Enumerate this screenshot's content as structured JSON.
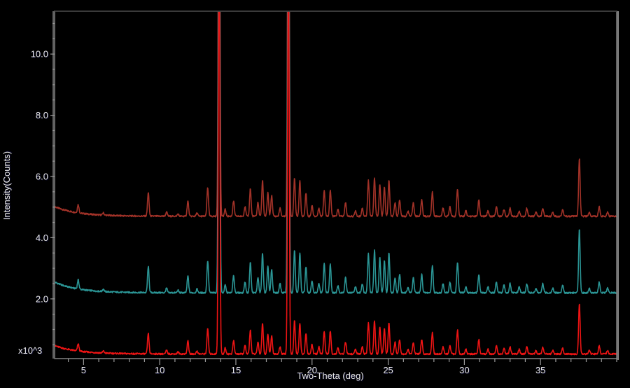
{
  "window": {
    "background_color": "#000000",
    "frame_color": "#8c8c8c",
    "frame_highlight_color": "#d9d9d9",
    "frame_shadow_color": "#3a3a3a",
    "tick_color": "#9a9a9a",
    "label_color": "#e9e9e9"
  },
  "chart_data": {
    "type": "line",
    "title": "",
    "xlabel": "Two-Theta (deg)",
    "ylabel": "Intensity(Counts)",
    "y_unit_multiplier": "x10^3",
    "xlim": [
      3.1,
      40.0
    ],
    "ylim": [
      0.05,
      11.4
    ],
    "x_major_ticks": [
      5,
      10,
      15,
      20,
      25,
      30,
      35
    ],
    "x_tick_labels": [
      "5",
      "10",
      "15",
      "20",
      "25",
      "30",
      "35"
    ],
    "x_minor_step": 1,
    "y_major_ticks": [
      2,
      4,
      6,
      8,
      10
    ],
    "y_tick_labels": [
      "2.0",
      "4.0",
      "6.0",
      "8.0",
      "10.0"
    ],
    "y_minor_step": 0.5,
    "grid": false,
    "legend": null,
    "description": "Three stacked powder X-ray diffraction patterns of the same phase, vertically offset; intensities in 10^3 counts; strongest reflections at 13.9 and 18.45 degrees are clipped at the top of the plot.",
    "peaks": [
      [
        4.65,
        0.3
      ],
      [
        6.3,
        0.08
      ],
      [
        9.25,
        0.85
      ],
      [
        10.45,
        0.15
      ],
      [
        11.2,
        0.08
      ],
      [
        11.85,
        0.55
      ],
      [
        12.45,
        0.12
      ],
      [
        13.15,
        1.05
      ],
      [
        13.9,
        18.0
      ],
      [
        14.3,
        0.25
      ],
      [
        14.85,
        0.55
      ],
      [
        15.6,
        0.35
      ],
      [
        15.95,
        1.0
      ],
      [
        16.45,
        0.5
      ],
      [
        16.75,
        1.3
      ],
      [
        17.1,
        0.85
      ],
      [
        17.35,
        0.75
      ],
      [
        17.9,
        0.3
      ],
      [
        18.45,
        18.5
      ],
      [
        18.85,
        1.4
      ],
      [
        19.2,
        1.3
      ],
      [
        19.6,
        0.85
      ],
      [
        20.0,
        0.4
      ],
      [
        20.45,
        0.3
      ],
      [
        20.8,
        0.95
      ],
      [
        21.2,
        0.95
      ],
      [
        21.7,
        0.25
      ],
      [
        22.2,
        0.5
      ],
      [
        22.85,
        0.2
      ],
      [
        23.3,
        0.3
      ],
      [
        23.7,
        1.3
      ],
      [
        24.1,
        1.4
      ],
      [
        24.45,
        1.15
      ],
      [
        24.75,
        1.05
      ],
      [
        25.05,
        1.3
      ],
      [
        25.45,
        0.5
      ],
      [
        25.75,
        0.6
      ],
      [
        26.3,
        0.2
      ],
      [
        26.65,
        0.5
      ],
      [
        27.2,
        0.6
      ],
      [
        27.9,
        0.9
      ],
      [
        28.6,
        0.3
      ],
      [
        29.05,
        0.35
      ],
      [
        29.55,
        1.0
      ],
      [
        30.1,
        0.2
      ],
      [
        30.95,
        0.6
      ],
      [
        31.55,
        0.2
      ],
      [
        32.1,
        0.35
      ],
      [
        32.6,
        0.25
      ],
      [
        33.0,
        0.3
      ],
      [
        33.6,
        0.2
      ],
      [
        34.1,
        0.3
      ],
      [
        34.7,
        0.15
      ],
      [
        35.15,
        0.3
      ],
      [
        35.8,
        0.15
      ],
      [
        36.45,
        0.25
      ],
      [
        37.55,
        2.1
      ],
      [
        38.2,
        0.15
      ],
      [
        38.85,
        0.35
      ],
      [
        39.4,
        0.15
      ]
    ],
    "series": [
      {
        "name": "top-pattern",
        "color": "#a23228",
        "offset": 4.7,
        "scale": 0.9
      },
      {
        "name": "middle-pattern",
        "color": "#2b9696",
        "offset": 2.2,
        "scale": 1.0
      },
      {
        "name": "bottom-pattern",
        "color": "#ee1414",
        "offset": 0.2,
        "scale": 0.78
      }
    ],
    "background_decay": {
      "amplitude": 0.35,
      "tau": 1.5
    },
    "noise_amplitude": 0.025,
    "peak_sigma": 0.05
  }
}
